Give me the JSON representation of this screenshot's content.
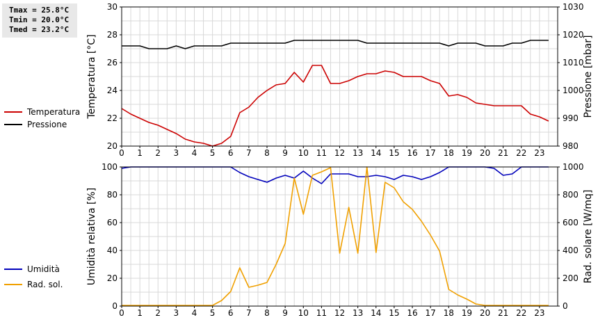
{
  "stats": {
    "tmax": "Tmax = 25.8°C",
    "tmin": "Tmin = 20.0°C",
    "tmed": "Tmed = 23.2°C"
  },
  "chart_data": [
    {
      "type": "line",
      "xlim": [
        0,
        24
      ],
      "xticks": [
        "0",
        "1",
        "2",
        "3",
        "4",
        "5",
        "6",
        "7",
        "8",
        "9",
        "10",
        "11",
        "12",
        "13",
        "14",
        "15",
        "16",
        "17",
        "18",
        "19",
        "20",
        "21",
        "22",
        "23"
      ],
      "ylabel": "Temperatura [°C]",
      "ylim": [
        20,
        30
      ],
      "yticks": [
        "20",
        "22",
        "24",
        "26",
        "28",
        "30"
      ],
      "y2label": "Pressione [mbar]",
      "y2lim": [
        980,
        1030
      ],
      "y2ticks": [
        "980",
        "990",
        "1000",
        "1010",
        "1020",
        "1030"
      ],
      "grid": true,
      "legend_position": "left",
      "series": [
        {
          "name": "Temperatura",
          "color": "#cc0000",
          "axis": "left",
          "x": [
            0,
            0.5,
            1,
            1.5,
            2,
            2.5,
            3,
            3.5,
            4,
            4.5,
            5,
            5.5,
            6,
            6.5,
            7,
            7.5,
            8,
            8.5,
            9,
            9.5,
            10,
            10.5,
            11,
            11.5,
            12,
            12.5,
            13,
            13.5,
            14,
            14.5,
            15,
            15.5,
            16,
            16.5,
            17,
            17.5,
            18,
            18.5,
            19,
            19.5,
            20,
            20.5,
            21,
            21.5,
            22,
            22.5,
            23,
            23.5
          ],
          "values": [
            22.7,
            22.3,
            22.0,
            21.7,
            21.5,
            21.2,
            20.9,
            20.5,
            20.3,
            20.2,
            20.0,
            20.2,
            20.7,
            22.4,
            22.8,
            23.5,
            24.0,
            24.4,
            24.5,
            25.3,
            24.6,
            25.8,
            25.8,
            24.5,
            24.5,
            24.7,
            25.0,
            25.2,
            25.2,
            25.4,
            25.3,
            25.0,
            25.0,
            25.0,
            24.7,
            24.5,
            23.6,
            23.7,
            23.5,
            23.1,
            23.0,
            22.9,
            22.9,
            22.9,
            22.9,
            22.3,
            22.1,
            21.8
          ]
        },
        {
          "name": "Pressione",
          "color": "#000000",
          "axis": "right",
          "x": [
            0,
            0.5,
            1,
            1.5,
            2,
            2.5,
            3,
            3.5,
            4,
            4.5,
            5,
            5.5,
            6,
            6.5,
            7,
            7.5,
            8,
            8.5,
            9,
            9.5,
            10,
            10.5,
            11,
            11.5,
            12,
            12.5,
            13,
            13.5,
            14,
            14.5,
            15,
            15.5,
            16,
            16.5,
            17,
            17.5,
            18,
            18.5,
            19,
            19.5,
            20,
            20.5,
            21,
            21.5,
            22,
            22.5,
            23,
            23.5
          ],
          "values": [
            1016,
            1016,
            1016,
            1015,
            1015,
            1015,
            1016,
            1015,
            1016,
            1016,
            1016,
            1016,
            1017,
            1017,
            1017,
            1017,
            1017,
            1017,
            1017,
            1018,
            1018,
            1018,
            1018,
            1018,
            1018,
            1018,
            1018,
            1017,
            1017,
            1017,
            1017,
            1017,
            1017,
            1017,
            1017,
            1017,
            1016,
            1017,
            1017,
            1017,
            1016,
            1016,
            1016,
            1017,
            1017,
            1018,
            1018,
            1018
          ]
        }
      ]
    },
    {
      "type": "line",
      "xlim": [
        0,
        24
      ],
      "xticks": [
        "0",
        "1",
        "2",
        "3",
        "4",
        "5",
        "6",
        "7",
        "8",
        "9",
        "10",
        "11",
        "12",
        "13",
        "14",
        "15",
        "16",
        "17",
        "18",
        "19",
        "20",
        "21",
        "22",
        "23"
      ],
      "ylabel": "Umidità relativa [%]",
      "ylim": [
        0,
        100
      ],
      "yticks": [
        "0",
        "20",
        "40",
        "60",
        "80",
        "100"
      ],
      "y2label": "Rad. solare [W/mq]",
      "y2lim": [
        0,
        1000
      ],
      "y2ticks": [
        "0",
        "200",
        "400",
        "600",
        "800",
        "1000"
      ],
      "grid": true,
      "legend_position": "left",
      "series": [
        {
          "name": "Umidità",
          "color": "#0000bb",
          "axis": "left",
          "x": [
            0,
            0.5,
            1,
            1.5,
            2,
            2.5,
            3,
            3.5,
            4,
            4.5,
            5,
            5.5,
            6,
            6.5,
            7,
            7.5,
            8,
            8.5,
            9,
            9.5,
            10,
            10.5,
            11,
            11.5,
            12,
            12.5,
            13,
            13.5,
            14,
            14.5,
            15,
            15.5,
            16,
            16.5,
            17,
            17.5,
            18,
            18.5,
            19,
            19.5,
            20,
            20.5,
            21,
            21.5,
            22,
            22.5,
            23,
            23.5
          ],
          "values": [
            99,
            100,
            100,
            100,
            100,
            100,
            100,
            100,
            100,
            100,
            100,
            100,
            100,
            96,
            93,
            91,
            89,
            92,
            94,
            92,
            97,
            92,
            88,
            95,
            95,
            95,
            93,
            93,
            94,
            93,
            91,
            94,
            93,
            91,
            93,
            96,
            100,
            100,
            100,
            100,
            100,
            99,
            94,
            95,
            100,
            100,
            100,
            100
          ]
        },
        {
          "name": "Rad. sol.",
          "color": "#f0a000",
          "axis": "right",
          "x": [
            0,
            0.5,
            1,
            1.5,
            2,
            2.5,
            3,
            3.5,
            4,
            4.5,
            5,
            5.5,
            6,
            6.5,
            7,
            7.5,
            8,
            8.5,
            9,
            9.5,
            10,
            10.5,
            11,
            11.5,
            12,
            12.5,
            13,
            13.5,
            14,
            14.5,
            15,
            15.5,
            16,
            16.5,
            17,
            17.5,
            18,
            18.5,
            19,
            19.5,
            20,
            20.5,
            21,
            21.5,
            22,
            22.5,
            23,
            23.5
          ],
          "values": [
            5,
            5,
            5,
            5,
            5,
            5,
            5,
            5,
            5,
            5,
            5,
            40,
            105,
            275,
            135,
            150,
            170,
            300,
            450,
            920,
            660,
            940,
            965,
            995,
            380,
            710,
            380,
            1000,
            385,
            890,
            850,
            750,
            695,
            610,
            510,
            395,
            120,
            80,
            50,
            15,
            5,
            5,
            5,
            5,
            5,
            5,
            5,
            5
          ]
        }
      ]
    }
  ]
}
